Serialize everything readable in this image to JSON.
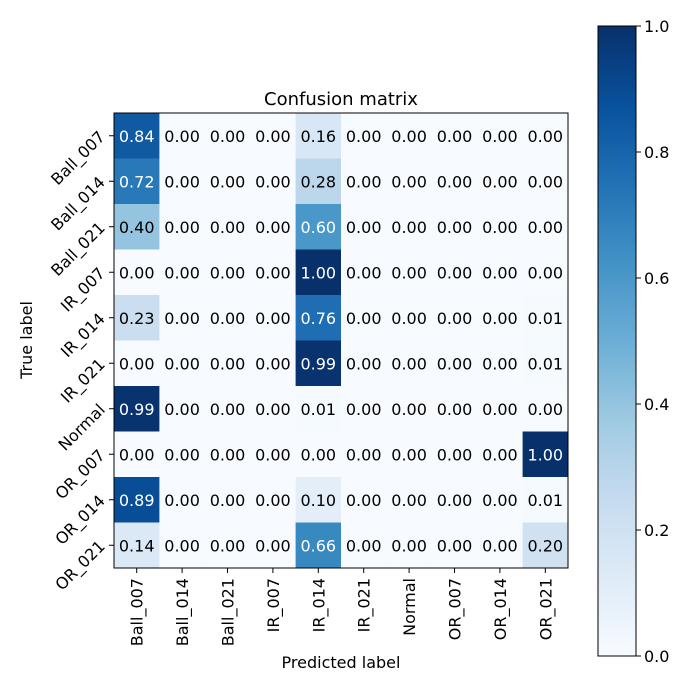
{
  "chart_data": {
    "type": "heatmap",
    "title": "Confusion matrix",
    "xlabel": "Predicted label",
    "ylabel": "True label",
    "row_labels": [
      "Ball_007",
      "Ball_014",
      "Ball_021",
      "IR_007",
      "IR_014",
      "IR_021",
      "Normal",
      "OR_007",
      "OR_014",
      "OR_021"
    ],
    "col_labels": [
      "Ball_007",
      "Ball_014",
      "Ball_021",
      "IR_007",
      "IR_014",
      "IR_021",
      "Normal",
      "OR_007",
      "OR_014",
      "OR_021"
    ],
    "values": [
      [
        0.84,
        0.0,
        0.0,
        0.0,
        0.16,
        0.0,
        0.0,
        0.0,
        0.0,
        0.0
      ],
      [
        0.72,
        0.0,
        0.0,
        0.0,
        0.28,
        0.0,
        0.0,
        0.0,
        0.0,
        0.0
      ],
      [
        0.4,
        0.0,
        0.0,
        0.0,
        0.6,
        0.0,
        0.0,
        0.0,
        0.0,
        0.0
      ],
      [
        0.0,
        0.0,
        0.0,
        0.0,
        1.0,
        0.0,
        0.0,
        0.0,
        0.0,
        0.0
      ],
      [
        0.23,
        0.0,
        0.0,
        0.0,
        0.76,
        0.0,
        0.0,
        0.0,
        0.0,
        0.01
      ],
      [
        0.0,
        0.0,
        0.0,
        0.0,
        0.99,
        0.0,
        0.0,
        0.0,
        0.0,
        0.01
      ],
      [
        0.99,
        0.0,
        0.0,
        0.0,
        0.01,
        0.0,
        0.0,
        0.0,
        0.0,
        0.0
      ],
      [
        0.0,
        0.0,
        0.0,
        0.0,
        0.0,
        0.0,
        0.0,
        0.0,
        0.0,
        1.0
      ],
      [
        0.89,
        0.0,
        0.0,
        0.0,
        0.1,
        0.0,
        0.0,
        0.0,
        0.0,
        0.01
      ],
      [
        0.14,
        0.0,
        0.0,
        0.0,
        0.66,
        0.0,
        0.0,
        0.0,
        0.0,
        0.2
      ]
    ],
    "colormap": "Blues",
    "colorbar": {
      "range": [
        0.0,
        1.0
      ],
      "ticks": [
        "0.0",
        "0.2",
        "0.4",
        "0.6",
        "0.8",
        "1.0"
      ]
    },
    "grid": false
  }
}
